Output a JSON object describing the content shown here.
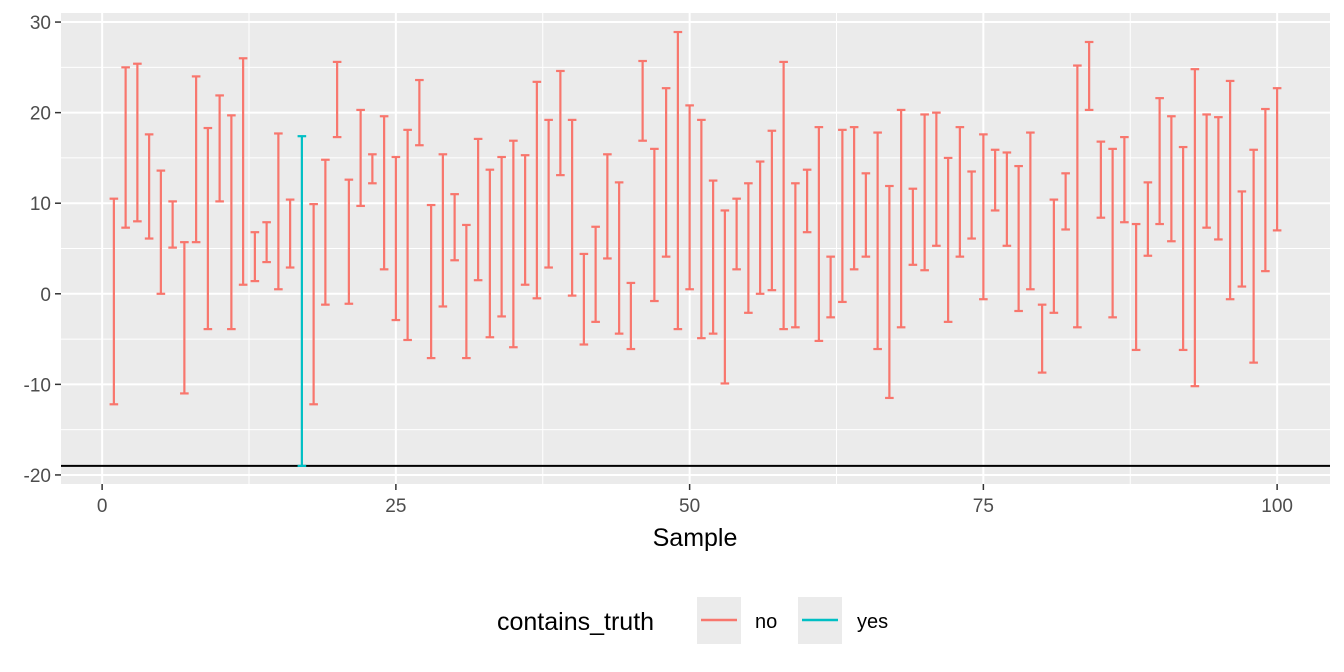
{
  "chart_data": {
    "type": "errorbar",
    "xlabel": "Sample",
    "ylabel": "",
    "xlim": [
      -3.5,
      104.5
    ],
    "ylim": [
      -21,
      31
    ],
    "x_ticks": [
      0,
      25,
      50,
      75,
      100
    ],
    "x_tick_labels": [
      "0",
      "25",
      "50",
      "75",
      "100"
    ],
    "y_ticks": [
      -20,
      -10,
      0,
      10,
      20,
      30
    ],
    "y_tick_labels": [
      "-20",
      "-10",
      "0",
      "10",
      "20",
      "30"
    ],
    "grid": true,
    "reference_line": {
      "y": -19,
      "color": "#000000"
    },
    "legend": {
      "title": "contains_truth",
      "position": "bottom",
      "entries": [
        {
          "label": "no",
          "color": "#F8766D"
        },
        {
          "label": "yes",
          "color": "#00BFC4"
        }
      ]
    },
    "series": [
      {
        "name": "no",
        "color": "#F8766D"
      },
      {
        "name": "yes",
        "color": "#00BFC4"
      }
    ],
    "intervals": [
      {
        "x": 1,
        "lower": -12.2,
        "upper": 10.5,
        "contains_truth": "no"
      },
      {
        "x": 2,
        "lower": 7.3,
        "upper": 25.0,
        "contains_truth": "no"
      },
      {
        "x": 3,
        "lower": 8.0,
        "upper": 25.4,
        "contains_truth": "no"
      },
      {
        "x": 4,
        "lower": 6.1,
        "upper": 17.6,
        "contains_truth": "no"
      },
      {
        "x": 5,
        "lower": 0.0,
        "upper": 13.6,
        "contains_truth": "no"
      },
      {
        "x": 6,
        "lower": 5.1,
        "upper": 10.2,
        "contains_truth": "no"
      },
      {
        "x": 7,
        "lower": -11.0,
        "upper": 5.7,
        "contains_truth": "no"
      },
      {
        "x": 8,
        "lower": 5.7,
        "upper": 24.0,
        "contains_truth": "no"
      },
      {
        "x": 9,
        "lower": -3.9,
        "upper": 18.3,
        "contains_truth": "no"
      },
      {
        "x": 10,
        "lower": 10.2,
        "upper": 21.9,
        "contains_truth": "no"
      },
      {
        "x": 11,
        "lower": -3.9,
        "upper": 19.7,
        "contains_truth": "no"
      },
      {
        "x": 12,
        "lower": 1.0,
        "upper": 26.0,
        "contains_truth": "no"
      },
      {
        "x": 13,
        "lower": 1.4,
        "upper": 6.8,
        "contains_truth": "no"
      },
      {
        "x": 14,
        "lower": 3.5,
        "upper": 7.9,
        "contains_truth": "no"
      },
      {
        "x": 15,
        "lower": 0.5,
        "upper": 17.7,
        "contains_truth": "no"
      },
      {
        "x": 16,
        "lower": 2.9,
        "upper": 10.4,
        "contains_truth": "no"
      },
      {
        "x": 17,
        "lower": -19.0,
        "upper": 17.4,
        "contains_truth": "yes"
      },
      {
        "x": 18,
        "lower": -12.2,
        "upper": 9.9,
        "contains_truth": "no"
      },
      {
        "x": 19,
        "lower": -1.2,
        "upper": 14.8,
        "contains_truth": "no"
      },
      {
        "x": 20,
        "lower": 17.3,
        "upper": 25.6,
        "contains_truth": "no"
      },
      {
        "x": 21,
        "lower": -1.1,
        "upper": 12.6,
        "contains_truth": "no"
      },
      {
        "x": 22,
        "lower": 9.7,
        "upper": 20.3,
        "contains_truth": "no"
      },
      {
        "x": 23,
        "lower": 12.2,
        "upper": 15.4,
        "contains_truth": "no"
      },
      {
        "x": 24,
        "lower": 2.7,
        "upper": 19.6,
        "contains_truth": "no"
      },
      {
        "x": 25,
        "lower": -2.9,
        "upper": 15.1,
        "contains_truth": "no"
      },
      {
        "x": 26,
        "lower": -5.1,
        "upper": 18.1,
        "contains_truth": "no"
      },
      {
        "x": 27,
        "lower": 16.4,
        "upper": 23.6,
        "contains_truth": "no"
      },
      {
        "x": 28,
        "lower": -7.1,
        "upper": 9.8,
        "contains_truth": "no"
      },
      {
        "x": 29,
        "lower": -1.4,
        "upper": 15.4,
        "contains_truth": "no"
      },
      {
        "x": 30,
        "lower": 3.7,
        "upper": 11.0,
        "contains_truth": "no"
      },
      {
        "x": 31,
        "lower": -7.1,
        "upper": 7.6,
        "contains_truth": "no"
      },
      {
        "x": 32,
        "lower": 1.5,
        "upper": 17.1,
        "contains_truth": "no"
      },
      {
        "x": 33,
        "lower": -4.8,
        "upper": 13.7,
        "contains_truth": "no"
      },
      {
        "x": 34,
        "lower": -2.5,
        "upper": 15.1,
        "contains_truth": "no"
      },
      {
        "x": 35,
        "lower": -5.9,
        "upper": 16.9,
        "contains_truth": "no"
      },
      {
        "x": 36,
        "lower": 1.0,
        "upper": 15.3,
        "contains_truth": "no"
      },
      {
        "x": 37,
        "lower": -0.5,
        "upper": 23.4,
        "contains_truth": "no"
      },
      {
        "x": 38,
        "lower": 2.9,
        "upper": 19.2,
        "contains_truth": "no"
      },
      {
        "x": 39,
        "lower": 13.1,
        "upper": 24.6,
        "contains_truth": "no"
      },
      {
        "x": 40,
        "lower": -0.2,
        "upper": 19.2,
        "contains_truth": "no"
      },
      {
        "x": 41,
        "lower": -5.6,
        "upper": 4.4,
        "contains_truth": "no"
      },
      {
        "x": 42,
        "lower": -3.1,
        "upper": 7.4,
        "contains_truth": "no"
      },
      {
        "x": 43,
        "lower": 3.9,
        "upper": 15.4,
        "contains_truth": "no"
      },
      {
        "x": 44,
        "lower": -4.4,
        "upper": 12.3,
        "contains_truth": "no"
      },
      {
        "x": 45,
        "lower": -6.1,
        "upper": 1.2,
        "contains_truth": "no"
      },
      {
        "x": 46,
        "lower": 16.9,
        "upper": 25.7,
        "contains_truth": "no"
      },
      {
        "x": 47,
        "lower": -0.8,
        "upper": 16.0,
        "contains_truth": "no"
      },
      {
        "x": 48,
        "lower": 4.1,
        "upper": 22.7,
        "contains_truth": "no"
      },
      {
        "x": 49,
        "lower": -3.9,
        "upper": 28.9,
        "contains_truth": "no"
      },
      {
        "x": 50,
        "lower": 0.5,
        "upper": 20.8,
        "contains_truth": "no"
      },
      {
        "x": 51,
        "lower": -4.9,
        "upper": 19.2,
        "contains_truth": "no"
      },
      {
        "x": 52,
        "lower": -4.4,
        "upper": 12.5,
        "contains_truth": "no"
      },
      {
        "x": 53,
        "lower": -9.9,
        "upper": 9.2,
        "contains_truth": "no"
      },
      {
        "x": 54,
        "lower": 2.7,
        "upper": 10.5,
        "contains_truth": "no"
      },
      {
        "x": 55,
        "lower": -2.1,
        "upper": 12.2,
        "contains_truth": "no"
      },
      {
        "x": 56,
        "lower": 0.0,
        "upper": 14.6,
        "contains_truth": "no"
      },
      {
        "x": 57,
        "lower": 0.4,
        "upper": 18.0,
        "contains_truth": "no"
      },
      {
        "x": 58,
        "lower": -3.9,
        "upper": 25.6,
        "contains_truth": "no"
      },
      {
        "x": 59,
        "lower": -3.7,
        "upper": 12.2,
        "contains_truth": "no"
      },
      {
        "x": 60,
        "lower": 6.8,
        "upper": 13.7,
        "contains_truth": "no"
      },
      {
        "x": 61,
        "lower": -5.2,
        "upper": 18.4,
        "contains_truth": "no"
      },
      {
        "x": 62,
        "lower": -2.6,
        "upper": 4.1,
        "contains_truth": "no"
      },
      {
        "x": 63,
        "lower": -0.9,
        "upper": 18.1,
        "contains_truth": "no"
      },
      {
        "x": 64,
        "lower": 2.7,
        "upper": 18.4,
        "contains_truth": "no"
      },
      {
        "x": 65,
        "lower": 4.1,
        "upper": 13.3,
        "contains_truth": "no"
      },
      {
        "x": 66,
        "lower": -6.1,
        "upper": 17.8,
        "contains_truth": "no"
      },
      {
        "x": 67,
        "lower": -11.5,
        "upper": 11.9,
        "contains_truth": "no"
      },
      {
        "x": 68,
        "lower": -3.7,
        "upper": 20.3,
        "contains_truth": "no"
      },
      {
        "x": 69,
        "lower": 3.2,
        "upper": 11.6,
        "contains_truth": "no"
      },
      {
        "x": 70,
        "lower": 2.6,
        "upper": 19.8,
        "contains_truth": "no"
      },
      {
        "x": 71,
        "lower": 5.3,
        "upper": 20.0,
        "contains_truth": "no"
      },
      {
        "x": 72,
        "lower": -3.1,
        "upper": 15.0,
        "contains_truth": "no"
      },
      {
        "x": 73,
        "lower": 4.1,
        "upper": 18.4,
        "contains_truth": "no"
      },
      {
        "x": 74,
        "lower": 6.1,
        "upper": 13.5,
        "contains_truth": "no"
      },
      {
        "x": 75,
        "lower": -0.6,
        "upper": 17.6,
        "contains_truth": "no"
      },
      {
        "x": 76,
        "lower": 9.2,
        "upper": 15.9,
        "contains_truth": "no"
      },
      {
        "x": 77,
        "lower": 5.3,
        "upper": 15.6,
        "contains_truth": "no"
      },
      {
        "x": 78,
        "lower": -1.9,
        "upper": 14.1,
        "contains_truth": "no"
      },
      {
        "x": 79,
        "lower": 0.5,
        "upper": 17.8,
        "contains_truth": "no"
      },
      {
        "x": 80,
        "lower": -8.7,
        "upper": -1.2,
        "contains_truth": "no"
      },
      {
        "x": 81,
        "lower": -2.1,
        "upper": 10.4,
        "contains_truth": "no"
      },
      {
        "x": 82,
        "lower": 7.1,
        "upper": 13.3,
        "contains_truth": "no"
      },
      {
        "x": 83,
        "lower": -3.7,
        "upper": 25.2,
        "contains_truth": "no"
      },
      {
        "x": 84,
        "lower": 20.3,
        "upper": 27.8,
        "contains_truth": "no"
      },
      {
        "x": 85,
        "lower": 8.4,
        "upper": 16.8,
        "contains_truth": "no"
      },
      {
        "x": 86,
        "lower": -2.6,
        "upper": 16.0,
        "contains_truth": "no"
      },
      {
        "x": 87,
        "lower": 7.9,
        "upper": 17.3,
        "contains_truth": "no"
      },
      {
        "x": 88,
        "lower": -6.2,
        "upper": 7.7,
        "contains_truth": "no"
      },
      {
        "x": 89,
        "lower": 4.2,
        "upper": 12.3,
        "contains_truth": "no"
      },
      {
        "x": 90,
        "lower": 7.7,
        "upper": 21.6,
        "contains_truth": "no"
      },
      {
        "x": 91,
        "lower": 5.8,
        "upper": 19.6,
        "contains_truth": "no"
      },
      {
        "x": 92,
        "lower": -6.2,
        "upper": 16.2,
        "contains_truth": "no"
      },
      {
        "x": 93,
        "lower": -10.2,
        "upper": 24.8,
        "contains_truth": "no"
      },
      {
        "x": 94,
        "lower": 7.3,
        "upper": 19.8,
        "contains_truth": "no"
      },
      {
        "x": 95,
        "lower": 6.0,
        "upper": 19.5,
        "contains_truth": "no"
      },
      {
        "x": 96,
        "lower": -0.6,
        "upper": 23.5,
        "contains_truth": "no"
      },
      {
        "x": 97,
        "lower": 0.8,
        "upper": 11.3,
        "contains_truth": "no"
      },
      {
        "x": 98,
        "lower": -7.6,
        "upper": 15.9,
        "contains_truth": "no"
      },
      {
        "x": 99,
        "lower": 2.5,
        "upper": 20.4,
        "contains_truth": "no"
      },
      {
        "x": 100,
        "lower": 7.0,
        "upper": 22.7,
        "contains_truth": "no"
      }
    ]
  }
}
